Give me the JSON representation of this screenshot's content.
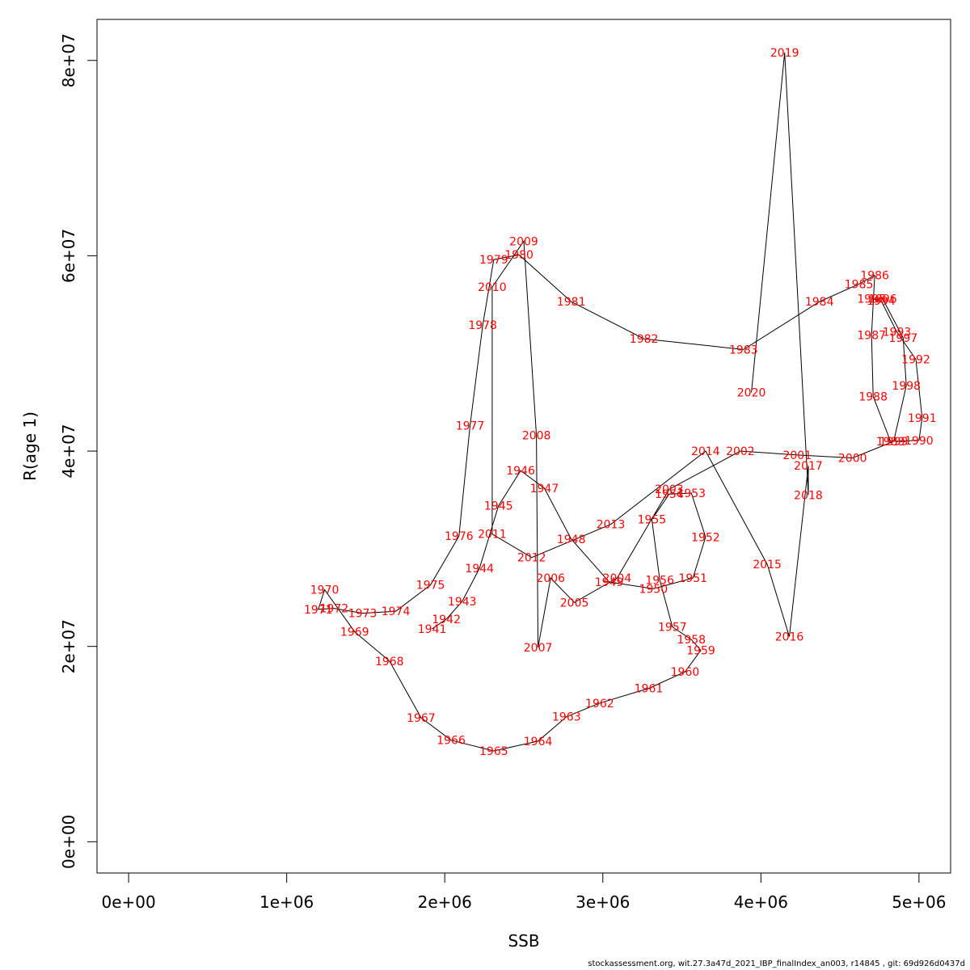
{
  "chart_data": {
    "type": "line",
    "xlabel": "SSB",
    "ylabel": "R(age 1)",
    "xlim": [
      -200000,
      5200000
    ],
    "ylim": [
      -3200000,
      84200000
    ],
    "x_ticks": [
      0,
      1000000,
      2000000,
      3000000,
      4000000,
      5000000
    ],
    "x_tick_labels": [
      "0e+00",
      "1e+06",
      "2e+06",
      "3e+06",
      "4e+06",
      "5e+06"
    ],
    "y_ticks": [
      0,
      20000000,
      40000000,
      60000000,
      80000000
    ],
    "y_tick_labels": [
      "0e+00",
      "2e+07",
      "4e+07",
      "6e+07",
      "8e+07"
    ],
    "label_color": "#ff0000",
    "line_color": "#000000",
    "points": [
      {
        "year": "1941",
        "ssb": 1920000,
        "rec": 21800000
      },
      {
        "year": "1942",
        "ssb": 2010000,
        "rec": 22800000
      },
      {
        "year": "1943",
        "ssb": 2110000,
        "rec": 24600000
      },
      {
        "year": "1944",
        "ssb": 2220000,
        "rec": 28000000
      },
      {
        "year": "1945",
        "ssb": 2340000,
        "rec": 34400000
      },
      {
        "year": "1946",
        "ssb": 2480000,
        "rec": 38000000
      },
      {
        "year": "1947",
        "ssb": 2630000,
        "rec": 36200000
      },
      {
        "year": "1948",
        "ssb": 2800000,
        "rec": 31000000
      },
      {
        "year": "1949",
        "ssb": 3040000,
        "rec": 26600000
      },
      {
        "year": "1950",
        "ssb": 3320000,
        "rec": 25900000
      },
      {
        "year": "1951",
        "ssb": 3570000,
        "rec": 27000000
      },
      {
        "year": "1952",
        "ssb": 3650000,
        "rec": 31200000
      },
      {
        "year": "1953",
        "ssb": 3560000,
        "rec": 35700000
      },
      {
        "year": "1954",
        "ssb": 3420000,
        "rec": 35600000
      },
      {
        "year": "1955",
        "ssb": 3310000,
        "rec": 33000000
      },
      {
        "year": "1956",
        "ssb": 3360000,
        "rec": 26800000
      },
      {
        "year": "1957",
        "ssb": 3440000,
        "rec": 22000000
      },
      {
        "year": "1958",
        "ssb": 3560000,
        "rec": 20700000
      },
      {
        "year": "1959",
        "ssb": 3620000,
        "rec": 19600000
      },
      {
        "year": "1960",
        "ssb": 3520000,
        "rec": 17400000
      },
      {
        "year": "1961",
        "ssb": 3290000,
        "rec": 15700000
      },
      {
        "year": "1962",
        "ssb": 2980000,
        "rec": 14200000
      },
      {
        "year": "1963",
        "ssb": 2770000,
        "rec": 12800000
      },
      {
        "year": "1964",
        "ssb": 2590000,
        "rec": 10300000
      },
      {
        "year": "1965",
        "ssb": 2310000,
        "rec": 9300000
      },
      {
        "year": "1966",
        "ssb": 2040000,
        "rec": 10400000
      },
      {
        "year": "1967",
        "ssb": 1850000,
        "rec": 12700000
      },
      {
        "year": "1968",
        "ssb": 1650000,
        "rec": 18500000
      },
      {
        "year": "1969",
        "ssb": 1430000,
        "rec": 21500000
      },
      {
        "year": "1970",
        "ssb": 1240000,
        "rec": 25800000
      },
      {
        "year": "1971",
        "ssb": 1200000,
        "rec": 23800000
      },
      {
        "year": "1972",
        "ssb": 1300000,
        "rec": 23900000
      },
      {
        "year": "1973",
        "ssb": 1480000,
        "rec": 23400000
      },
      {
        "year": "1974",
        "ssb": 1690000,
        "rec": 23600000
      },
      {
        "year": "1975",
        "ssb": 1910000,
        "rec": 26300000
      },
      {
        "year": "1976",
        "ssb": 2090000,
        "rec": 31300000
      },
      {
        "year": "1977",
        "ssb": 2160000,
        "rec": 42600000
      },
      {
        "year": "1978",
        "ssb": 2240000,
        "rec": 52900000
      },
      {
        "year": "1979",
        "ssb": 2310000,
        "rec": 59600000
      },
      {
        "year": "1980",
        "ssb": 2470000,
        "rec": 60100000
      },
      {
        "year": "1981",
        "ssb": 2800000,
        "rec": 55300000
      },
      {
        "year": "1982",
        "ssb": 3260000,
        "rec": 51500000
      },
      {
        "year": "1983",
        "ssb": 3890000,
        "rec": 50400000
      },
      {
        "year": "1984",
        "ssb": 4370000,
        "rec": 55300000
      },
      {
        "year": "1985",
        "ssb": 4620000,
        "rec": 57100000
      },
      {
        "year": "1986",
        "ssb": 4720000,
        "rec": 58000000
      },
      {
        "year": "1987",
        "ssb": 4700000,
        "rec": 51900000
      },
      {
        "year": "1988",
        "ssb": 4710000,
        "rec": 45600000
      },
      {
        "year": "1989",
        "ssb": 4820000,
        "rec": 41000000
      },
      {
        "year": "1990",
        "ssb": 5000000,
        "rec": 41100000
      },
      {
        "year": "1991",
        "ssb": 5020000,
        "rec": 43400000
      },
      {
        "year": "1992",
        "ssb": 4980000,
        "rec": 49400000
      },
      {
        "year": "1993",
        "ssb": 4860000,
        "rec": 52200000
      },
      {
        "year": "1994",
        "ssb": 4760000,
        "rec": 55400000
      },
      {
        "year": "1995",
        "ssb": 4700000,
        "rec": 55600000
      },
      {
        "year": "1996",
        "ssb": 4770000,
        "rec": 55600000
      },
      {
        "year": "1997",
        "ssb": 4900000,
        "rec": 51600000
      },
      {
        "year": "1998",
        "ssb": 4920000,
        "rec": 46700000
      },
      {
        "year": "1999",
        "ssb": 4840000,
        "rec": 41000000
      },
      {
        "year": "2000",
        "ssb": 4580000,
        "rec": 39300000
      },
      {
        "year": "2001",
        "ssb": 4230000,
        "rec": 39600000
      },
      {
        "year": "2002",
        "ssb": 3870000,
        "rec": 40000000
      },
      {
        "year": "2003",
        "ssb": 3420000,
        "rec": 36100000
      },
      {
        "year": "2004",
        "ssb": 3090000,
        "rec": 27000000
      },
      {
        "year": "2005",
        "ssb": 2820000,
        "rec": 24500000
      },
      {
        "year": "2006",
        "ssb": 2670000,
        "rec": 27000000
      },
      {
        "year": "2007",
        "ssb": 2590000,
        "rec": 19900000
      },
      {
        "year": "2008",
        "ssb": 2580000,
        "rec": 41600000
      },
      {
        "year": "2009",
        "ssb": 2500000,
        "rec": 61500000
      },
      {
        "year": "2010",
        "ssb": 2300000,
        "rec": 56800000
      },
      {
        "year": "2011",
        "ssb": 2300000,
        "rec": 31500000
      },
      {
        "year": "2012",
        "ssb": 2550000,
        "rec": 29100000
      },
      {
        "year": "2013",
        "ssb": 3050000,
        "rec": 32500000
      },
      {
        "year": "2014",
        "ssb": 3650000,
        "rec": 40000000
      },
      {
        "year": "2015",
        "ssb": 4040000,
        "rec": 28400000
      },
      {
        "year": "2016",
        "ssb": 4180000,
        "rec": 21000000
      },
      {
        "year": "2017",
        "ssb": 4300000,
        "rec": 38500000
      },
      {
        "year": "2018",
        "ssb": 4300000,
        "rec": 35500000
      },
      {
        "year": "2019",
        "ssb": 4150000,
        "rec": 80800000
      },
      {
        "year": "2020",
        "ssb": 3940000,
        "rec": 46000000
      }
    ]
  },
  "footer_text": "stockassessment.org, wit.27.3a47d_2021_IBP_finalIndex_an003, r14845 , git: 69d926d0437d"
}
